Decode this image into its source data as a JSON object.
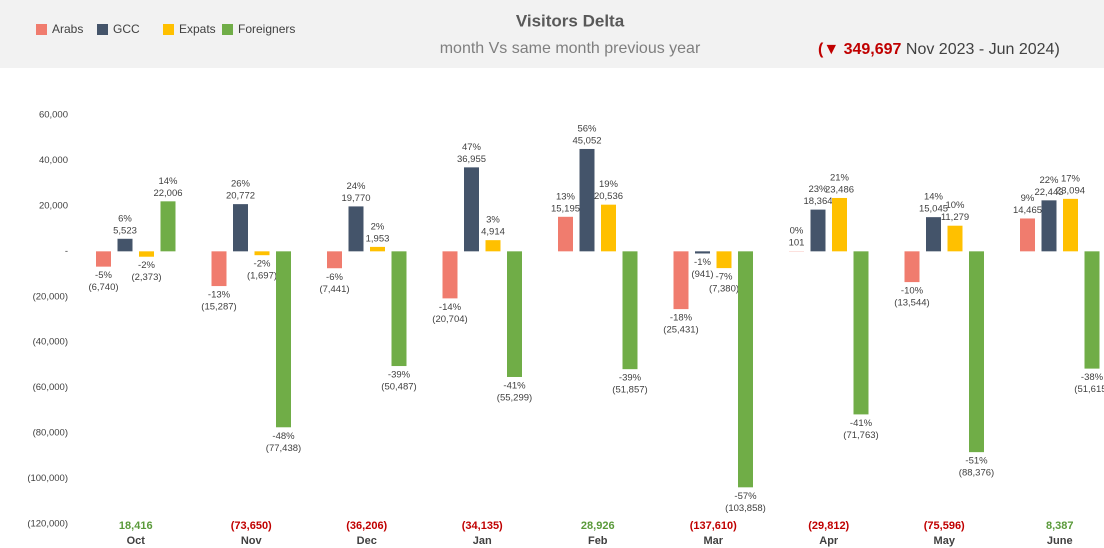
{
  "chart_data": {
    "type": "bar",
    "title": "Visitors Delta",
    "subtitle": "month Vs same month previous year",
    "annotation": [
      "(",
      "▼ 349,697",
      " Nov 2023 - Jun 2024)"
    ],
    "categories": [
      "Oct",
      "Nov",
      "Dec",
      "Jan",
      "Feb",
      "Mar",
      "Apr",
      "May",
      "June"
    ],
    "series": [
      {
        "name": "Arabs",
        "color": "#f07c6e",
        "values": [
          -6740,
          -15287,
          -7441,
          -20704,
          15195,
          -25431,
          101,
          -13544,
          14465
        ],
        "value_labels": [
          "(6,740)",
          "(15,287)",
          "(7,441)",
          "(20,704)",
          "15,195",
          "(25,431)",
          "101",
          "(13,544)",
          "14,465"
        ],
        "percent_labels": [
          "-5%",
          "-13%",
          "-6%",
          "-14%",
          "13%",
          "-18%",
          "0%",
          "-10%",
          "9%"
        ]
      },
      {
        "name": "GCC",
        "color": "#44546a",
        "values": [
          5523,
          20772,
          19770,
          36955,
          45052,
          -941,
          18364,
          15045,
          22443
        ],
        "value_labels": [
          "5,523",
          "20,772",
          "19,770",
          "36,955",
          "45,052",
          "(941)",
          "18,364",
          "15,045",
          "22,443"
        ],
        "percent_labels": [
          "6%",
          "26%",
          "24%",
          "47%",
          "56%",
          "-1%",
          "23%",
          "14%",
          "22%"
        ]
      },
      {
        "name": "Expats",
        "color": "#ffc000",
        "values": [
          -2373,
          -1697,
          1953,
          4914,
          20536,
          -7380,
          23486,
          11279,
          23094
        ],
        "value_labels": [
          "(2,373)",
          "(1,697)",
          "1,953",
          "4,914",
          "20,536",
          "(7,380)",
          "23,486",
          "11,279",
          "23,094"
        ],
        "percent_labels": [
          "-2%",
          "-2%",
          "2%",
          "3%",
          "19%",
          "-7%",
          "21%",
          "10%",
          "17%"
        ]
      },
      {
        "name": "Foreigners",
        "color": "#70ad47",
        "values": [
          22006,
          -77438,
          -50487,
          -55299,
          -51857,
          -103858,
          -71763,
          -88376,
          -51615
        ],
        "value_labels": [
          "22,006",
          "(77,438)",
          "(50,487)",
          "(55,299)",
          "(51,857)",
          "(103,858)",
          "(71,763)",
          "(88,376)",
          "(51,615)"
        ],
        "percent_labels": [
          "14%",
          "-48%",
          "-39%",
          "-41%",
          "-39%",
          "-57%",
          "-41%",
          "-51%",
          "-38%"
        ]
      }
    ],
    "totals": {
      "values": [
        18416,
        -73650,
        -36206,
        -34135,
        28926,
        -137610,
        -29812,
        -75596,
        8387
      ],
      "value_labels": [
        "18,416",
        "(73,650)",
        "(36,206)",
        "(34,135)",
        "28,926",
        "(137,610)",
        "(29,812)",
        "(75,596)",
        "8,387"
      ]
    },
    "ylim": [
      -120000,
      60000
    ],
    "yticks": [
      {
        "value": 60000,
        "label": "60,000"
      },
      {
        "value": 40000,
        "label": "40,000"
      },
      {
        "value": 20000,
        "label": "20,000"
      },
      {
        "value": 0,
        "label": "-"
      },
      {
        "value": -20000,
        "label": "(20,000)"
      },
      {
        "value": -40000,
        "label": "(40,000)"
      },
      {
        "value": -60000,
        "label": "(60,000)"
      },
      {
        "value": -80000,
        "label": "(80,000)"
      },
      {
        "value": -100000,
        "label": "(100,000)"
      },
      {
        "value": -120000,
        "label": "(120,000)"
      }
    ],
    "grid": false
  }
}
